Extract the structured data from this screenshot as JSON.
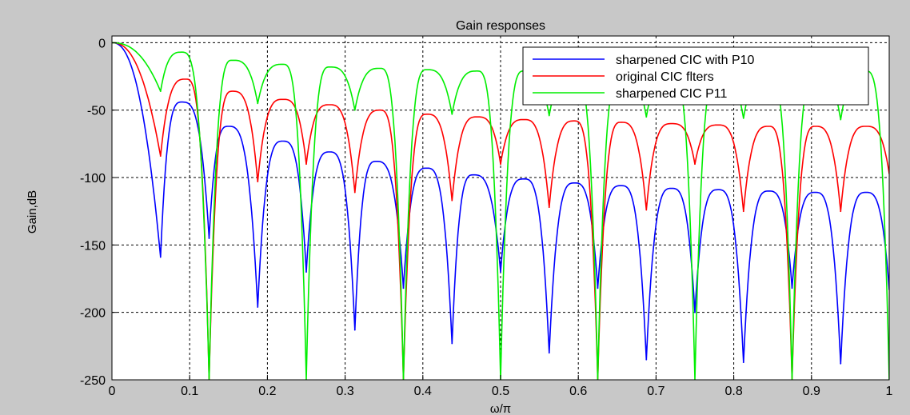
{
  "chart_data": {
    "type": "line",
    "title": "Gain responses",
    "xlabel": "ω/π",
    "ylabel": "Gain,dB",
    "xlim": [
      0,
      1
    ],
    "ylim": [
      -250,
      5
    ],
    "x_ticks": [
      "0",
      "0.1",
      "0.2",
      "0.3",
      "0.4",
      "0.5",
      "0.6",
      "0.7",
      "0.8",
      "0.9",
      "1"
    ],
    "y_ticks": [
      "0",
      "-50",
      "-100",
      "-150",
      "-200",
      "-250"
    ],
    "grid": true,
    "legend_position": "top-right",
    "series": [
      {
        "name": "sharpened CIC with P10",
        "color": "#0000ff",
        "lobe_peaks_x": [
          0.0,
          0.09,
          0.15,
          0.22,
          0.28,
          0.34,
          0.405,
          0.465,
          0.53,
          0.595,
          0.655,
          0.72,
          0.78,
          0.845,
          0.905,
          0.97
        ],
        "lobe_peaks_y": [
          0,
          -44,
          -62,
          -73,
          -81,
          -88,
          -93,
          -98,
          -101,
          -104,
          -106,
          -108,
          -109,
          -110,
          -111,
          -111
        ],
        "null_x": [
          0.0625,
          0.125,
          0.1875,
          0.25,
          0.3125,
          0.375,
          0.4375,
          0.5,
          0.5625,
          0.625,
          0.6875,
          0.75,
          0.8125,
          0.875,
          0.9375,
          1.0
        ],
        "null_y": [
          -159,
          -145,
          -196,
          -170,
          -213,
          -182,
          -223,
          -170,
          -230,
          -182,
          -235,
          -200,
          -237,
          -182,
          -238,
          -183
        ]
      },
      {
        "name": "original CIC flters",
        "color": "#ff0000",
        "lobe_peaks_x": [
          0.0,
          0.095,
          0.155,
          0.22,
          0.28,
          0.345,
          0.405,
          0.47,
          0.53,
          0.595,
          0.655,
          0.72,
          0.78,
          0.845,
          0.905,
          0.97
        ],
        "lobe_peaks_y": [
          0,
          -27,
          -36,
          -42,
          -46,
          -50,
          -53,
          -55,
          -57,
          -58,
          -59,
          -60,
          -61,
          -62,
          -62,
          -62
        ],
        "null_x": [
          0.0625,
          0.125,
          0.1875,
          0.25,
          0.3125,
          0.375,
          0.4375,
          0.5,
          0.5625,
          0.625,
          0.6875,
          0.75,
          0.8125,
          0.875,
          0.9375,
          1.0
        ],
        "null_y": [
          -84,
          -250,
          -103,
          -90,
          -111,
          -250,
          -117,
          -90,
          -122,
          -250,
          -124,
          -90,
          -125,
          -250,
          -125,
          -97
        ]
      },
      {
        "name": "sharpened CIC P11",
        "color": "#00ee00",
        "lobe_peaks_x": [
          0.0,
          0.09,
          0.155,
          0.22,
          0.28,
          0.345,
          0.405,
          0.47,
          0.53,
          0.595,
          0.655,
          0.72,
          0.78,
          0.845,
          0.905,
          0.97
        ],
        "lobe_peaks_y": [
          0,
          -7,
          -13,
          -16,
          -18,
          -19,
          -20,
          -21,
          -21,
          -21,
          -21,
          -21,
          -21,
          -21,
          -21,
          -21
        ],
        "null_x": [
          0.0625,
          0.125,
          0.1875,
          0.25,
          0.3125,
          0.375,
          0.4375,
          0.5,
          0.5625,
          0.625,
          0.6875,
          0.75,
          0.8125,
          0.875,
          0.9375,
          1.0
        ],
        "null_y": [
          -36,
          -250,
          -45,
          -250,
          -50,
          -250,
          -53,
          -250,
          -54,
          -250,
          -55,
          -250,
          -56,
          -250,
          -57,
          -250
        ]
      }
    ]
  }
}
